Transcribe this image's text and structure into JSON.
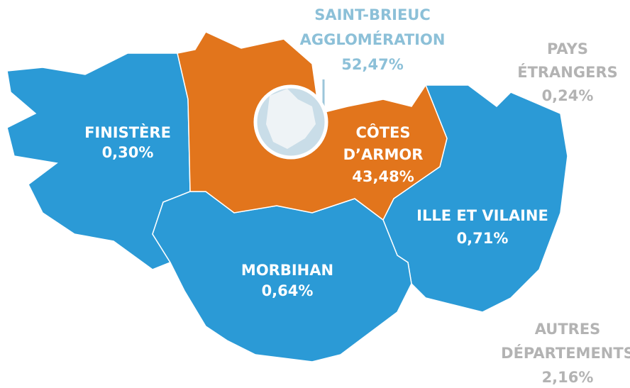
{
  "regions": [
    {
      "lines": [
        "SAINT-BRIEUC",
        "AGGLOMÉRATION"
      ],
      "value": "52,47%"
    },
    {
      "lines": [
        "PAYS",
        "ÉTRANGERS"
      ],
      "value": "0,24%"
    },
    {
      "lines": [
        "FINISTÈRE"
      ],
      "value": "0,30%"
    },
    {
      "lines": [
        "CÔTES",
        "D’ARMOR"
      ],
      "value": "43,48%"
    },
    {
      "lines": [
        "ILLE ET VILAINE"
      ],
      "value": "0,71%"
    },
    {
      "lines": [
        "MORBIHAN"
      ],
      "value": "0,64%"
    },
    {
      "lines": [
        "AUTRES",
        "DÉPARTEMENTS"
      ],
      "value": "2,16%"
    }
  ]
}
